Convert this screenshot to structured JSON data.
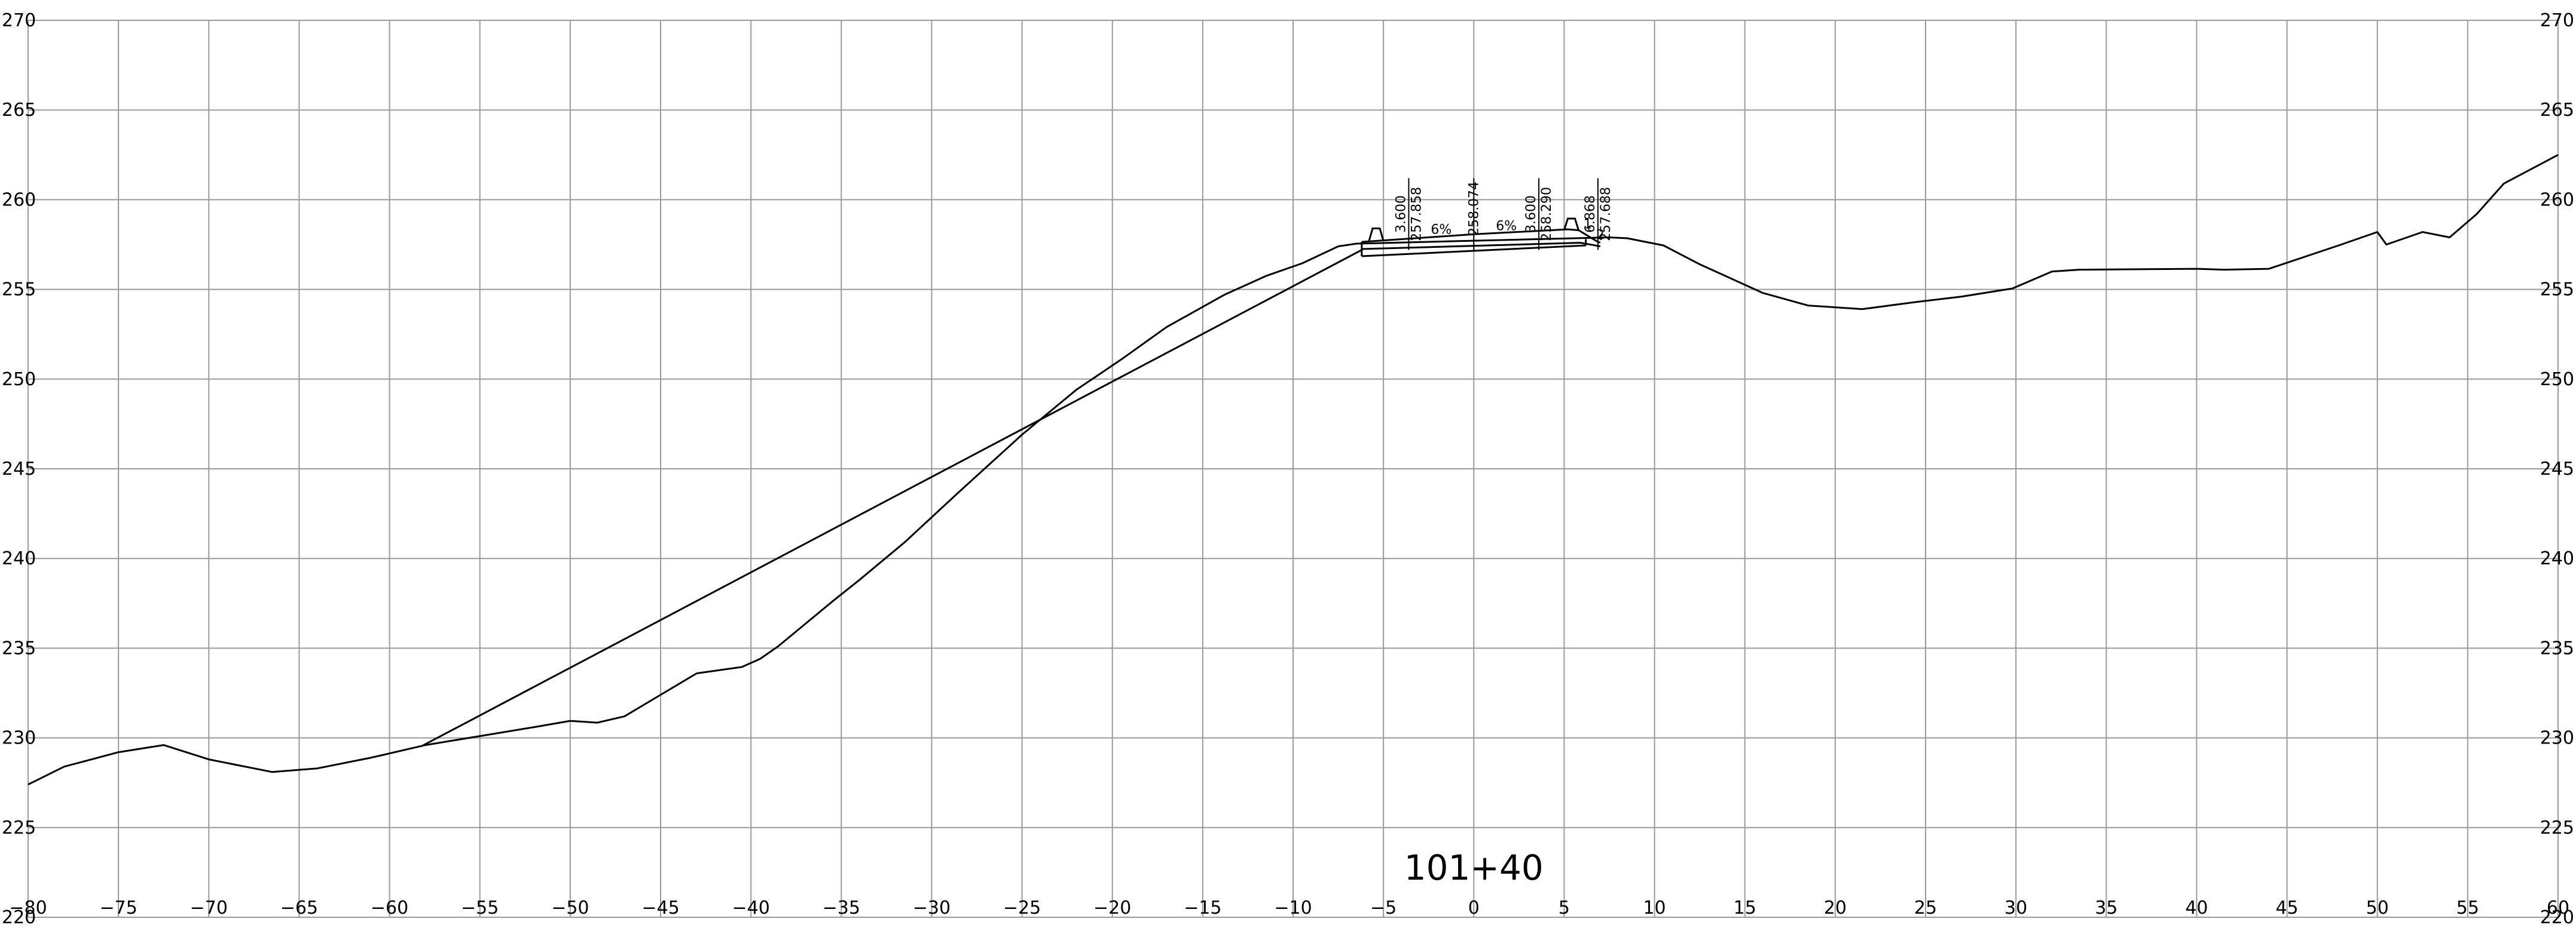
{
  "chart_data": {
    "type": "line",
    "title": "",
    "station_label": "101+40",
    "xlabel": "",
    "ylabel": "",
    "xlim": [
      -80,
      60
    ],
    "ylim": [
      220,
      270
    ],
    "x_tick_step": 5,
    "y_tick_step": 5,
    "grid": true,
    "y_labels_both_sides": true,
    "colors": {
      "grid": "#9a9a9a",
      "lines": "#000000"
    },
    "series": [
      {
        "kind": "existing-ground",
        "points": [
          [
            -80,
            227.4
          ],
          [
            -78,
            228.4
          ],
          [
            -75,
            229.2
          ],
          [
            -72.5,
            229.6
          ],
          [
            -70,
            228.8
          ],
          [
            -66.5,
            228.1
          ],
          [
            -64,
            228.3
          ],
          [
            -61,
            228.9
          ],
          [
            -58,
            229.6
          ],
          [
            -55,
            230.1
          ],
          [
            -52,
            230.6
          ],
          [
            -50,
            230.95
          ],
          [
            -48.5,
            230.85
          ],
          [
            -47,
            231.2
          ],
          [
            -45,
            232.4
          ],
          [
            -43,
            233.6
          ],
          [
            -40.5,
            233.95
          ],
          [
            -39.5,
            234.4
          ],
          [
            -38.5,
            235.1
          ],
          [
            -35.5,
            237.6
          ],
          [
            -34,
            238.8
          ],
          [
            -31.5,
            240.9
          ],
          [
            -28.5,
            243.7
          ],
          [
            -25,
            246.9
          ],
          [
            -22,
            249.4
          ],
          [
            -19.5,
            251.1
          ],
          [
            -17,
            252.9
          ],
          [
            -13.8,
            254.7
          ],
          [
            -11.5,
            255.75
          ],
          [
            -9.5,
            256.45
          ],
          [
            -7.5,
            257.4
          ],
          [
            -6.5,
            257.55
          ],
          [
            7.5,
            257.9
          ],
          [
            8.5,
            257.85
          ],
          [
            10.5,
            257.45
          ],
          [
            12.5,
            256.4
          ],
          [
            16,
            254.8
          ],
          [
            18.5,
            254.1
          ],
          [
            21.5,
            253.9
          ],
          [
            24.5,
            254.3
          ],
          [
            27,
            254.6
          ],
          [
            29.8,
            255.05
          ],
          [
            32,
            256.0
          ],
          [
            33.5,
            256.1
          ],
          [
            40,
            256.15
          ],
          [
            41.5,
            256.1
          ],
          [
            44,
            256.15
          ],
          [
            48,
            257.5
          ],
          [
            50,
            258.2
          ],
          [
            50.5,
            257.5
          ],
          [
            52.5,
            258.2
          ],
          [
            54,
            257.9
          ],
          [
            55.5,
            259.2
          ],
          [
            57,
            260.9
          ],
          [
            60,
            262.5
          ]
        ]
      },
      {
        "kind": "proposed-fill-slope",
        "points": [
          [
            -58.2,
            229.55
          ],
          [
            -6.2,
            257.2
          ]
        ]
      },
      {
        "kind": "pavement-top",
        "points": [
          [
            -6.2,
            257.65
          ],
          [
            0,
            258.074
          ],
          [
            5.2,
            258.35
          ],
          [
            5.8,
            258.3
          ],
          [
            6.8,
            257.69
          ],
          [
            7.0,
            257.6
          ]
        ]
      },
      {
        "kind": "pavement-bottom",
        "points": [
          [
            -6.2,
            257.25
          ],
          [
            5.9,
            257.6
          ],
          [
            7.0,
            257.4
          ]
        ]
      },
      {
        "kind": "subbase-bottom",
        "points": [
          [
            -6.2,
            256.85
          ],
          [
            6.2,
            257.45
          ]
        ]
      }
    ],
    "annotations": [
      {
        "x": -3.6,
        "label_offset": "3.600",
        "label_elev": "257.858"
      },
      {
        "x": 0,
        "label_elev": "258.074"
      },
      {
        "x": 3.6,
        "label_offset": "3.600",
        "label_elev": "258.290"
      },
      {
        "x": 6.868,
        "label_offset": "6.868",
        "label_elev": "257.688"
      }
    ],
    "slope_labels": [
      {
        "x": -1.8,
        "y": 258.1,
        "text": "6%"
      },
      {
        "x": 1.8,
        "y": 258.3,
        "text": "6%"
      }
    ],
    "side_slope_labels": [
      {
        "x": 6.3,
        "y": 258.4,
        "text": "1"
      },
      {
        "x": 7.0,
        "y": 257.8,
        "text": "2"
      }
    ],
    "curbs": [
      {
        "x": -5.4,
        "base": 257.7,
        "height": 0.7
      },
      {
        "x": 5.4,
        "base": 258.3,
        "height": 0.65
      }
    ]
  }
}
